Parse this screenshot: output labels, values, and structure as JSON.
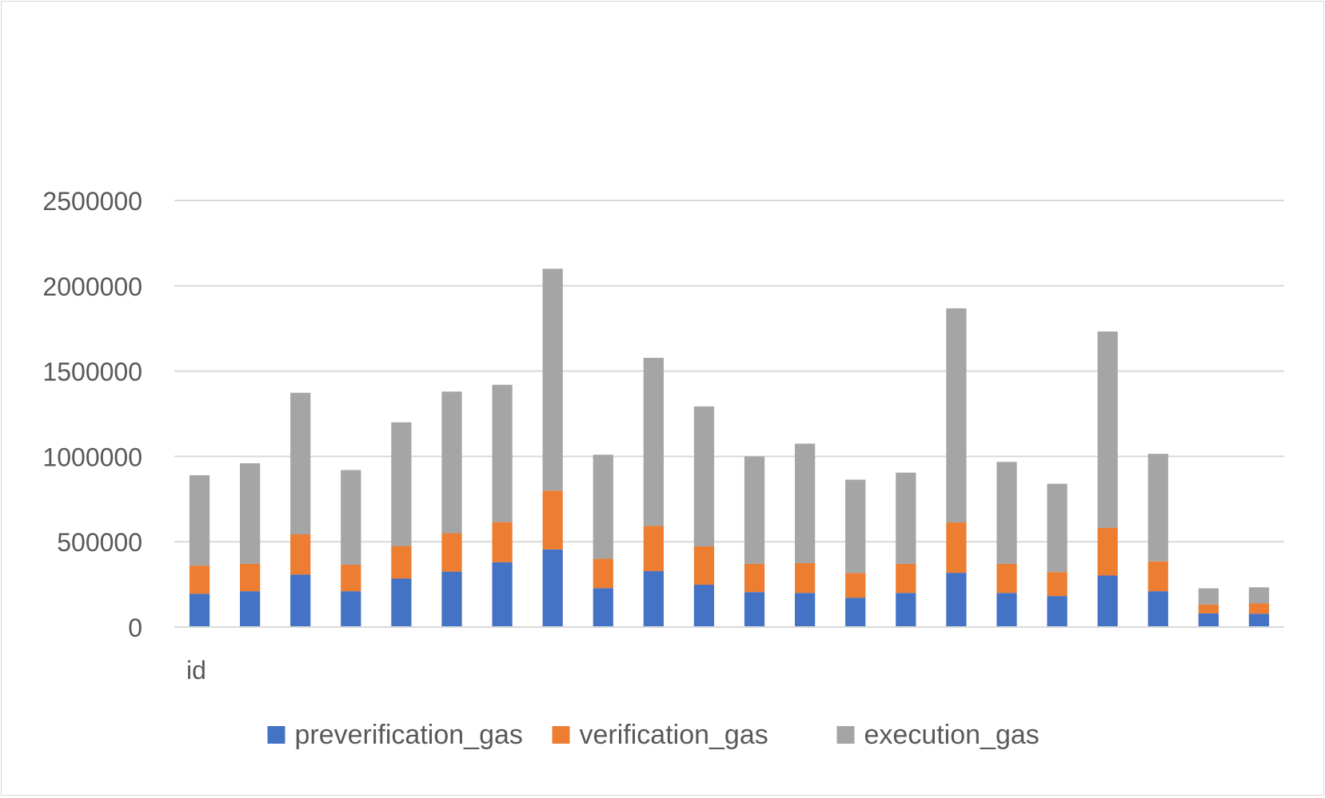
{
  "chart_data": {
    "type": "bar",
    "stacked": true,
    "title": "",
    "xlabel": "id",
    "ylabel": "",
    "ylim": [
      0,
      2500000
    ],
    "yticks": [
      "0",
      "500000",
      "1000000",
      "1500000",
      "2000000",
      "2500000"
    ],
    "grid": true,
    "legend_position": "bottom",
    "categories": [
      "",
      "",
      "",
      "",
      "",
      "",
      "",
      "",
      "",
      "",
      "",
      "",
      "",
      "",
      "",
      "",
      "",
      "",
      "",
      "",
      "",
      ""
    ],
    "series": [
      {
        "name": "preverification_gas",
        "color": "#4472c4",
        "values": [
          195000,
          210000,
          308000,
          210000,
          285000,
          325000,
          380000,
          455000,
          228000,
          328000,
          248000,
          205000,
          200000,
          172000,
          200000,
          318000,
          200000,
          182000,
          302000,
          210000,
          80000,
          78000
        ]
      },
      {
        "name": "verification_gas",
        "color": "#ed7d31",
        "values": [
          165000,
          160000,
          235000,
          155000,
          190000,
          225000,
          235000,
          345000,
          172000,
          265000,
          225000,
          165000,
          175000,
          145000,
          170000,
          295000,
          170000,
          140000,
          280000,
          175000,
          52000,
          60000
        ]
      },
      {
        "name": "execution_gas",
        "color": "#a5a5a5",
        "values": [
          530000,
          590000,
          830000,
          555000,
          725000,
          830000,
          805000,
          1300000,
          610000,
          985000,
          820000,
          630000,
          700000,
          547000,
          535000,
          1255000,
          598000,
          518000,
          1150000,
          630000,
          95000,
          95000
        ]
      }
    ]
  }
}
